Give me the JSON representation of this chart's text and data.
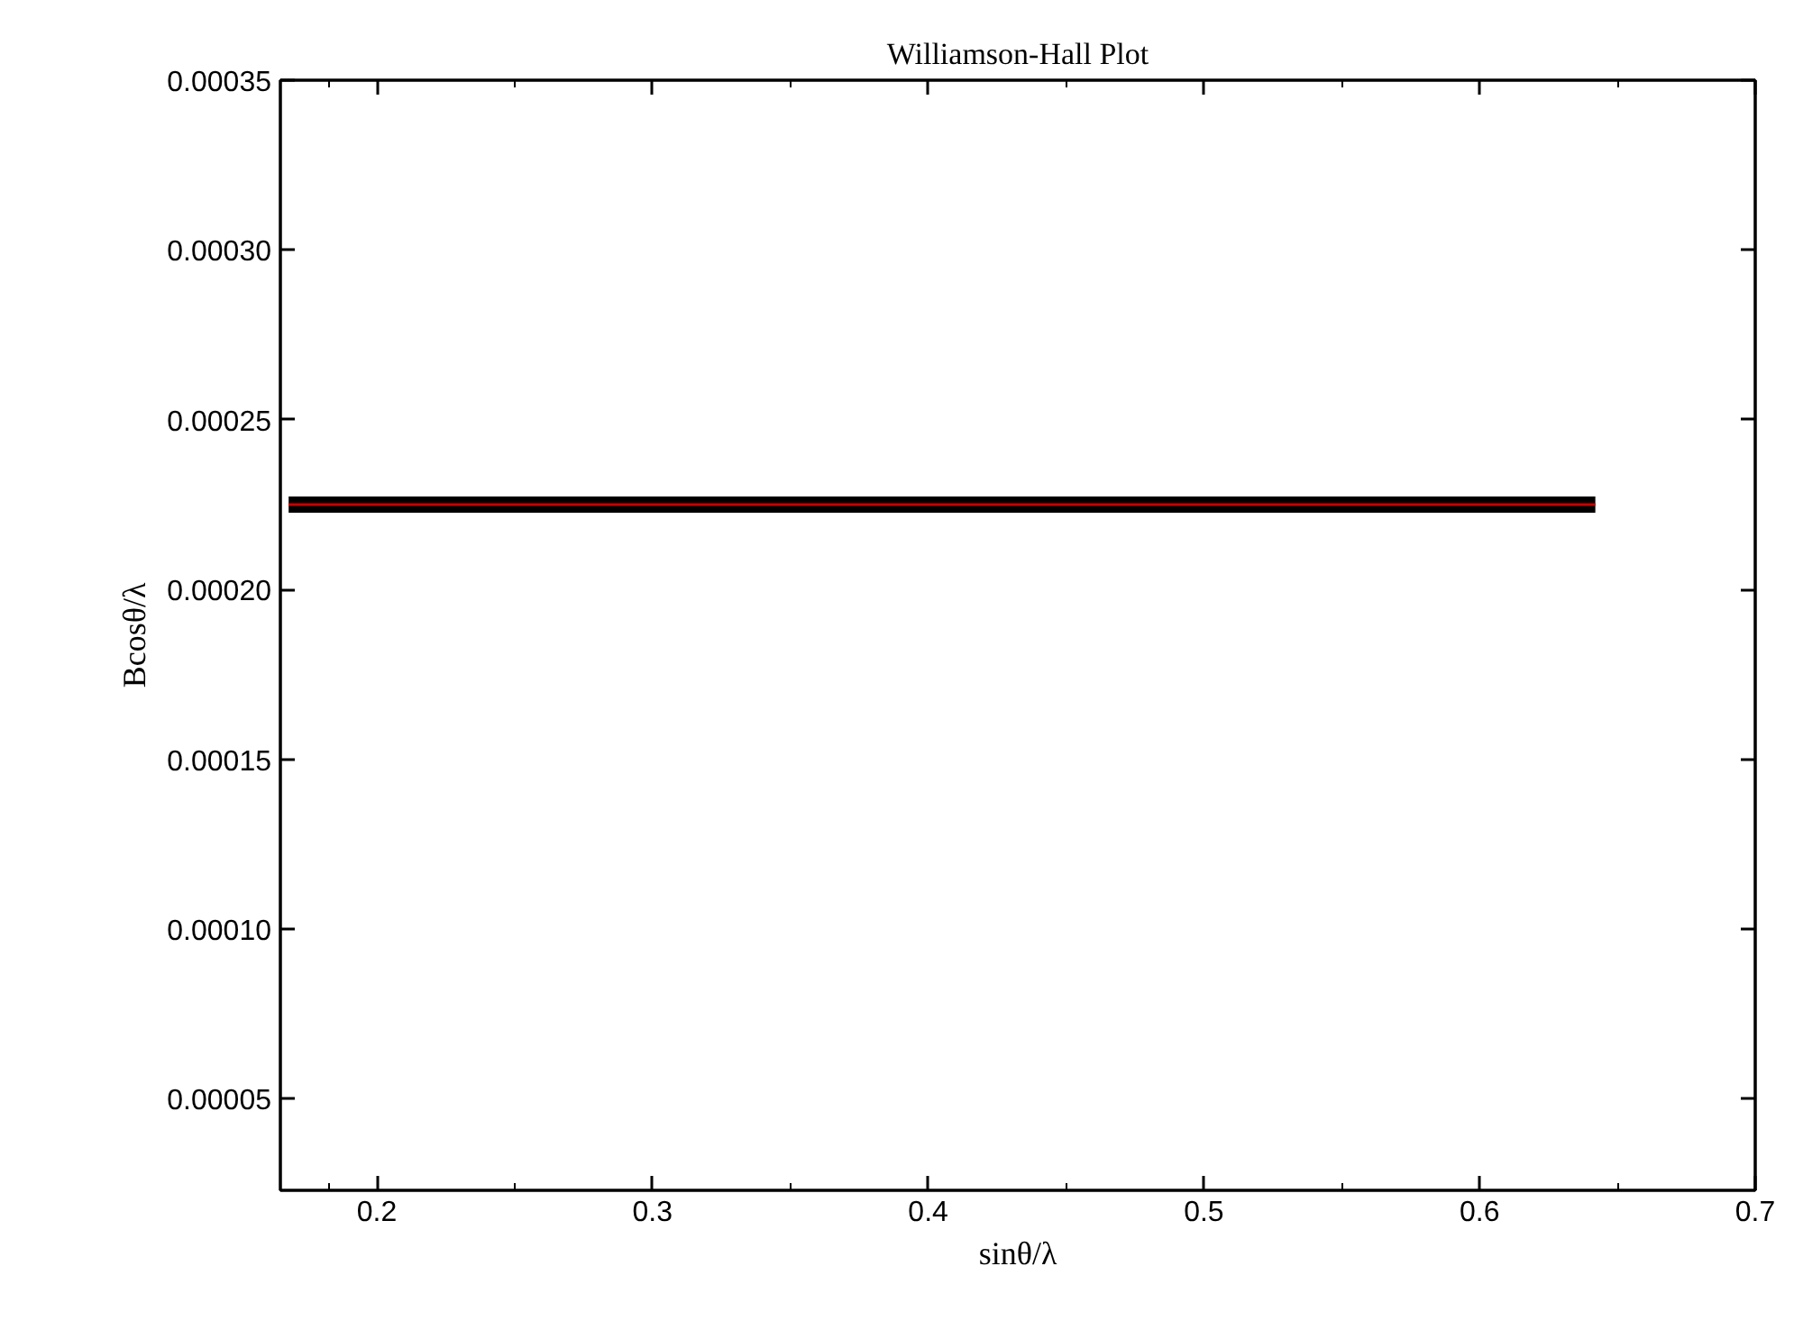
{
  "chart_data": {
    "type": "line",
    "title": "Williamson-Hall Plot",
    "xlabel": "sinθ/λ",
    "ylabel": "Bcosθ/λ",
    "x": [
      0.168,
      0.642
    ],
    "series": [
      {
        "color": "#000000",
        "values": [
          0.000225,
          0.000225
        ]
      },
      {
        "color": "#cc0000",
        "values": [
          0.000225,
          0.000225
        ]
      }
    ],
    "xlim": [
      0.165,
      0.7
    ],
    "ylim": [
      2.3e-05,
      0.00035
    ],
    "xticks": [
      0.2,
      0.3,
      0.4,
      0.5,
      0.6,
      0.7
    ],
    "yticks": [
      {
        "value": 5e-05,
        "label": "0.00005"
      },
      {
        "value": 0.0001,
        "label": "0.00010"
      },
      {
        "value": 0.00015,
        "label": "0.00015"
      },
      {
        "value": 0.0002,
        "label": "0.00020"
      },
      {
        "value": 0.00025,
        "label": "0.00025"
      },
      {
        "value": 0.0003,
        "label": "0.00030"
      },
      {
        "value": 0.00035,
        "label": "0.00035"
      }
    ],
    "grid": false,
    "marker": "none",
    "line_style": "solid"
  }
}
